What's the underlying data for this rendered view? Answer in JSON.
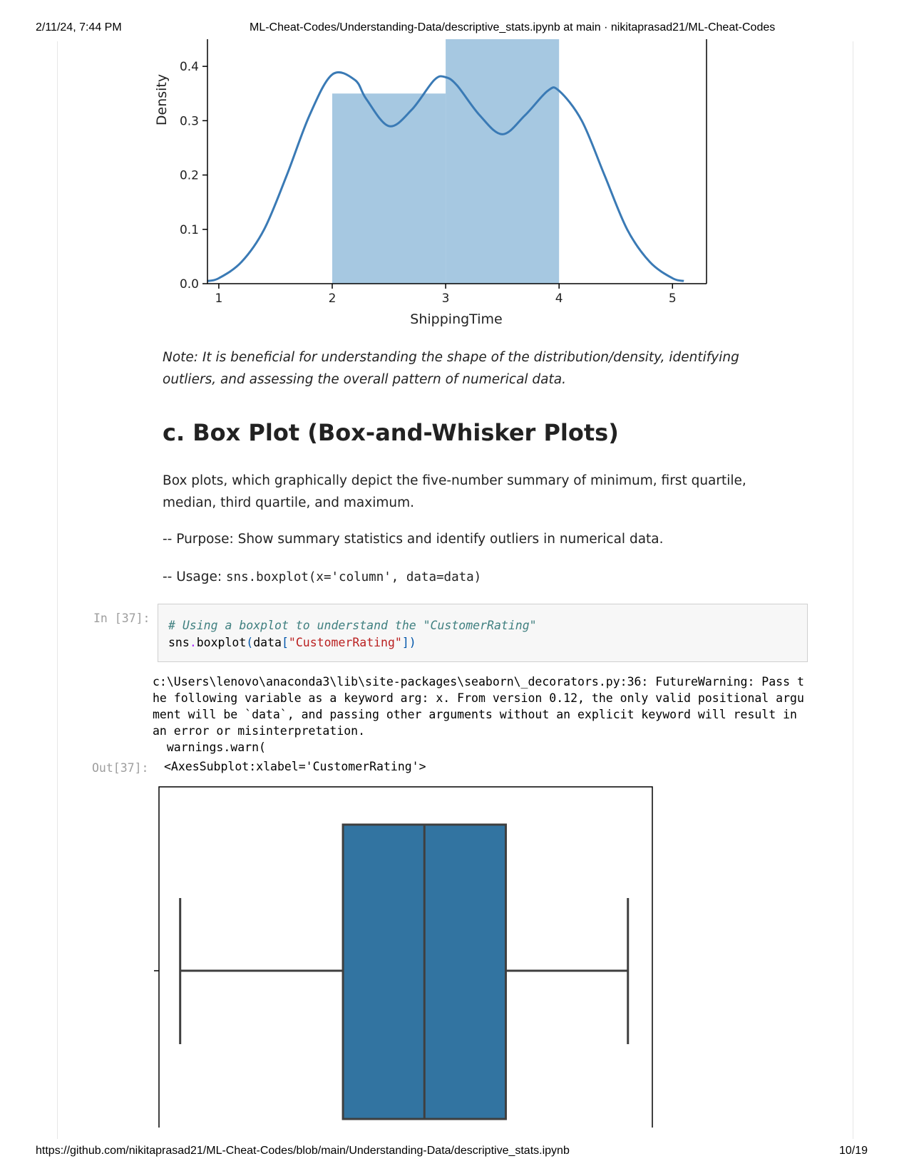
{
  "browser_print": {
    "datetime": "2/11/24, 7:44 PM",
    "title": "ML-Cheat-Codes/Understanding-Data/descriptive_stats.ipynb at main · nikitaprasad21/ML-Cheat-Codes",
    "url": "https://github.com/nikitaprasad21/ML-Cheat-Codes/blob/main/Understanding-Data/descriptive_stats.ipynb",
    "page_number": "10/19"
  },
  "chart_data": [
    {
      "type": "bar",
      "subtype": "histogram with kde line",
      "xlabel": "ShippingTime",
      "ylabel": "Density",
      "xlim": [
        0.9,
        5.3
      ],
      "ylim": [
        0,
        0.45
      ],
      "xticks": [
        "1",
        "2",
        "3",
        "4",
        "5"
      ],
      "yticks": [
        "0.0",
        "0.1",
        "0.2",
        "0.3",
        "0.4"
      ],
      "bins": [
        {
          "from": 2,
          "to": 3,
          "density": 0.35
        },
        {
          "from": 3,
          "to": 4,
          "density": 0.45
        }
      ],
      "kde": {
        "x": [
          0.9,
          1.0,
          1.2,
          1.4,
          1.6,
          1.8,
          2.0,
          2.2,
          2.3,
          2.5,
          2.7,
          2.9,
          3.0,
          3.1,
          3.3,
          3.5,
          3.7,
          3.9,
          4.0,
          4.2,
          4.4,
          4.6,
          4.8,
          5.0,
          5.1
        ],
        "y": [
          0.005,
          0.01,
          0.04,
          0.1,
          0.2,
          0.31,
          0.385,
          0.375,
          0.34,
          0.29,
          0.32,
          0.375,
          0.38,
          0.365,
          0.31,
          0.275,
          0.31,
          0.355,
          0.355,
          0.3,
          0.2,
          0.1,
          0.04,
          0.01,
          0.005
        ]
      },
      "colors": {
        "bars": "#a6c8e1",
        "line": "#3a7ab5"
      }
    },
    {
      "type": "box",
      "xlabel": "CustomerRating",
      "ylabel": "",
      "stats": {
        "whisker_low": 1.0,
        "q1": 2.0,
        "median": 2.5,
        "q3": 3.0,
        "whisker_high": 3.75
      },
      "xlim": [
        0.87,
        3.9
      ],
      "colors": {
        "box": "#3274a1",
        "line": "#3f3f3f"
      }
    }
  ],
  "cells": {
    "note": "Note: It is beneficial for understanding the shape of the distribution/density, identifying outliers, and assessing the overall pattern of numerical data.",
    "heading": "c. Box Plot (Box-and-Whisker Plots)",
    "desc": "Box plots, which graphically depict the five-number summary of minimum, first quartile, median, third quartile, and maximum.",
    "purpose": "-- Purpose: Show summary statistics and identify outliers in numerical data.",
    "usage_label": "-- Usage:",
    "usage_code": "sns.boxplot(x='column', data=data)",
    "in_prompt": "In [37]:",
    "code": {
      "comment": "# Using a boxplot to understand the \"CustomerRating\"",
      "l2_a": "sns",
      "l2_b": ".",
      "l2_c": "boxplot",
      "l2_d": "(",
      "l2_e": "data",
      "l2_f": "[",
      "l2_g": "\"CustomerRating\"",
      "l2_h": "])"
    },
    "stderr": "c:\\Users\\lenovo\\anaconda3\\lib\\site-packages\\seaborn\\_decorators.py:36: FutureWarning: Pass the following variable as a keyword arg: x. From version 0.12, the only valid positional argument will be `data`, and passing other arguments without an explicit keyword will result in an error or misinterpretation.\n  warnings.warn(",
    "out_prompt": "Out[37]:",
    "out_text": "<AxesSubplot:xlabel='CustomerRating'>"
  }
}
